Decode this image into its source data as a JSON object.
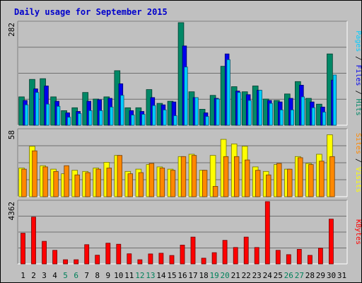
{
  "chart_data": {
    "type": "bar",
    "title": "Daily usage for September 2015",
    "categories": [
      "1",
      "2",
      "3",
      "4",
      "5",
      "6",
      "7",
      "8",
      "9",
      "10",
      "11",
      "12",
      "13",
      "14",
      "15",
      "16",
      "17",
      "18",
      "19",
      "20",
      "21",
      "22",
      "23",
      "24",
      "25",
      "26",
      "27",
      "28",
      "29",
      "30",
      "31"
    ],
    "weekend_days": [
      "5",
      "6",
      "12",
      "13",
      "19",
      "20",
      "26",
      "27"
    ],
    "panels": [
      {
        "id": "pages-files-hits",
        "ymax_label": "282",
        "ymax": 282,
        "legend": [
          {
            "text": "Pages",
            "color": "#00ccff"
          },
          {
            "text": "Files",
            "color": "#0000ee"
          },
          {
            "text": "Hits",
            "color": "#008866"
          }
        ],
        "separator": " / ",
        "series": [
          {
            "name": "Hits",
            "color": "#008866",
            "values": [
              78,
              126,
              128,
              78,
              40,
              48,
              90,
              72,
              78,
              150,
              48,
              48,
              98,
              60,
              66,
              282,
              92,
              44,
              82,
              162,
              106,
              92,
              108,
              72,
              68,
              86,
              120,
              74,
              58,
              196,
              null
            ]
          },
          {
            "name": "Files",
            "color": "#0000ee",
            "values": [
              68,
              100,
              108,
              66,
              34,
              38,
              66,
              70,
              74,
              114,
              40,
              38,
              76,
              56,
              64,
              218,
              76,
              34,
              74,
              196,
              94,
              84,
              96,
              68,
              64,
              74,
              110,
              64,
              50,
              124,
              null
            ]
          },
          {
            "name": "Pages",
            "color": "#00ccff",
            "values": [
              56,
              90,
              58,
              52,
              22,
              32,
              40,
              40,
              50,
              82,
              28,
              30,
              54,
              42,
              26,
              160,
              76,
              24,
              72,
              180,
              90,
              68,
              96,
              60,
              42,
              42,
              78,
              48,
              36,
              138,
              null
            ]
          }
        ]
      },
      {
        "id": "sites-visits",
        "ymax_label": "58",
        "ymax": 58,
        "legend": [
          {
            "text": "Sites",
            "color": "#ff8800"
          },
          {
            "text": "Visits",
            "color": "#ffff00"
          }
        ],
        "separator": " / ",
        "series": [
          {
            "name": "Visits",
            "color": "#ffff00",
            "values": [
              25,
              44,
              27,
              24,
              20,
              23,
              22,
              25,
              30,
              36,
              22,
              24,
              28,
              26,
              24,
              35,
              37,
              23,
              36,
              50,
              46,
              44,
              26,
              22,
              28,
              24,
              35,
              29,
              37,
              54,
              null
            ]
          },
          {
            "name": "Sites",
            "color": "#ff8800",
            "values": [
              24,
              40,
              26,
              22,
              27,
              19,
              21,
              24,
              25,
              36,
              20,
              21,
              29,
              25,
              23,
              35,
              36,
              23,
              9,
              35,
              35,
              32,
              23,
              19,
              29,
              24,
              34,
              28,
              31,
              35,
              null
            ]
          }
        ]
      },
      {
        "id": "kbytes",
        "ymax_label": "4362",
        "ymax": 4362,
        "legend": [
          {
            "text": "KBytes",
            "color": "#ff0000"
          }
        ],
        "separator": "",
        "series": [
          {
            "name": "KBytes",
            "color": "#ff0000",
            "values": [
              2150,
              3280,
              1580,
              950,
              290,
              290,
              1350,
              610,
              1450,
              1380,
              710,
              290,
              700,
              750,
              590,
              1320,
              1880,
              400,
              790,
              1650,
              1150,
              1880,
              1150,
              4362,
              950,
              650,
              1020,
              600,
              1100,
              3140,
              null
            ]
          }
        ]
      }
    ]
  }
}
